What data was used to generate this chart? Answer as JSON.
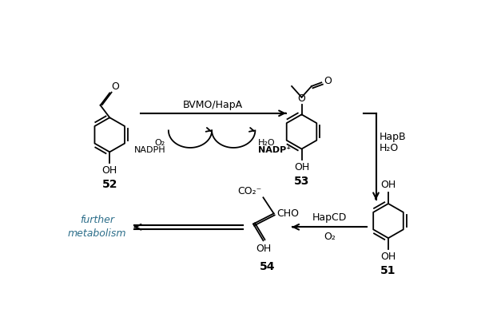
{
  "background_color": "#ffffff",
  "figure_width": 6.02,
  "figure_height": 4.12,
  "dpi": 100,
  "text": {
    "bvmo": "BVMO/HapA",
    "hapb": "HapB",
    "hapcd": "HapCD",
    "h2o_hapb": "H₂O",
    "o2_hapcd": "O₂",
    "o2_cofactor": "O₂",
    "nadph": "NADPH",
    "h2o_cofactor": "H₂O",
    "nadp": "NADP⁺",
    "further": "further\nmetabolism",
    "label_52": "52",
    "label_53": "53",
    "label_51": "51",
    "label_54": "54",
    "co2": "CO₂⁻",
    "cho": "CHO",
    "oh": "OH"
  },
  "colors": {
    "black": "#000000",
    "further_metabolism": "#2c6e8a",
    "bg": "#ffffff"
  }
}
